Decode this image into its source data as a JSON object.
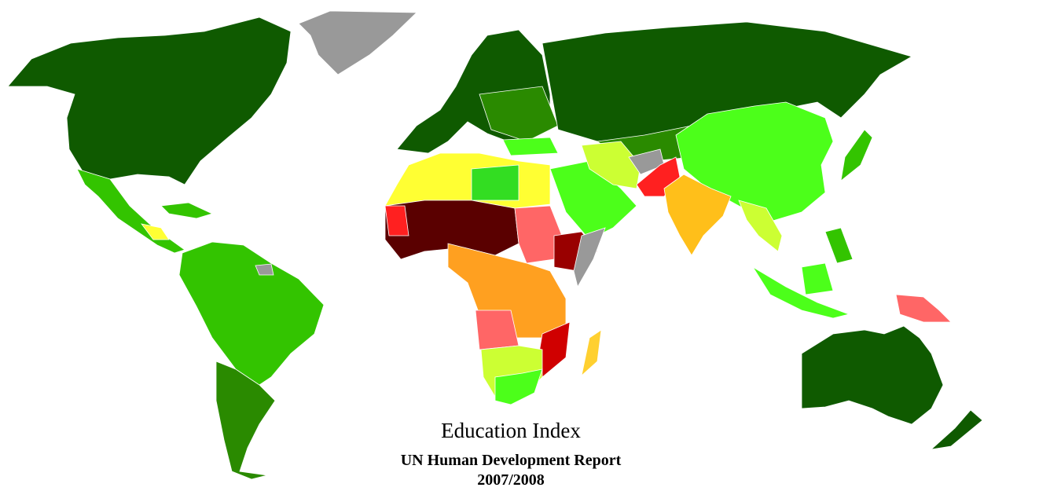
{
  "title": "Education Index",
  "subtitle": "UN Human Development Report",
  "period": "2007/2008"
}
